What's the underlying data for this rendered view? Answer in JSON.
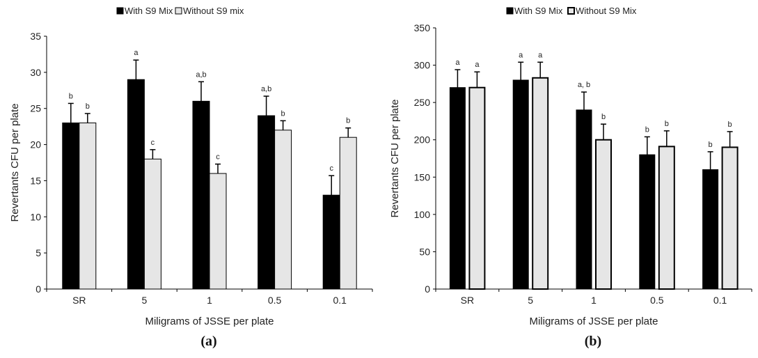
{
  "chart_data": [
    {
      "type": "bar",
      "panel_label": "(a)",
      "xlabel": "Miligrams of JSSE per plate",
      "ylabel": "Revertants CFU per plate",
      "categories": [
        "SR",
        "5",
        "1",
        "0.5",
        "0.1"
      ],
      "ylim": [
        0,
        35
      ],
      "yticks": [
        "0",
        "5",
        "10",
        "15",
        "20",
        "25",
        "30",
        "35"
      ],
      "legend_position": "top",
      "grid": false,
      "series": [
        {
          "name": "With S9 Mix",
          "color": "#000000",
          "values": [
            23,
            29,
            26,
            24,
            13
          ],
          "errors": [
            2.7,
            2.7,
            2.7,
            2.7,
            2.7
          ],
          "letters": [
            "b",
            "a",
            "a,b",
            "a,b",
            "c"
          ]
        },
        {
          "name": "Without S9 mix",
          "color": "#e6e6e6",
          "values": [
            23,
            18,
            16,
            22,
            21
          ],
          "errors": [
            1.3,
            1.3,
            1.3,
            1.3,
            1.3
          ],
          "letters": [
            "b",
            "c",
            "c",
            "b",
            "b"
          ]
        }
      ]
    },
    {
      "type": "bar",
      "panel_label": "(b)",
      "xlabel": "Miligrams of JSSE per plate",
      "ylabel": "Revertants CFU per plate",
      "categories": [
        "SR",
        "5",
        "1",
        "0.5",
        "0.1"
      ],
      "ylim": [
        0,
        350
      ],
      "yticks": [
        "0",
        "50",
        "100",
        "150",
        "200",
        "250",
        "300",
        "350"
      ],
      "legend_position": "top",
      "grid": false,
      "series": [
        {
          "name": "With S9 Mix",
          "color": "#000000",
          "values": [
            270,
            280,
            240,
            180,
            160
          ],
          "errors": [
            24,
            24,
            24,
            24,
            24
          ],
          "letters": [
            "a",
            "a",
            "a, b",
            "b",
            "b"
          ]
        },
        {
          "name": "Without S9 Mix",
          "color": "#e6e6e6",
          "values": [
            270,
            283,
            200,
            191,
            190
          ],
          "errors": [
            21,
            21,
            21,
            21,
            21
          ],
          "letters": [
            "a",
            "a",
            "b",
            "b",
            "b"
          ]
        }
      ]
    }
  ]
}
